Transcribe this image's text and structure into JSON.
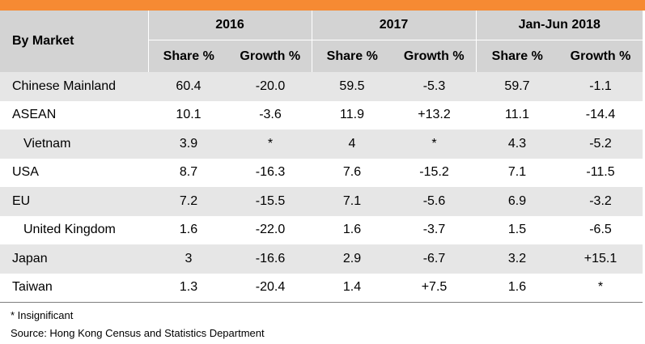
{
  "header": {
    "market_label": "By Market",
    "periods": [
      "2016",
      "2017",
      "Jan-Jun 2018"
    ],
    "share_label": "Share %",
    "growth_label": "Growth %"
  },
  "rows": [
    {
      "market": "Chinese Mainland",
      "sub": false,
      "values": [
        "60.4",
        "-20.0",
        "59.5",
        "-5.3",
        "59.7",
        "-1.1"
      ]
    },
    {
      "market": "ASEAN",
      "sub": false,
      "values": [
        "10.1",
        "-3.6",
        "11.9",
        "+13.2",
        "11.1",
        "-14.4"
      ]
    },
    {
      "market": "Vietnam",
      "sub": true,
      "values": [
        "3.9",
        "*",
        "4",
        "*",
        "4.3",
        "-5.2"
      ]
    },
    {
      "market": "USA",
      "sub": false,
      "values": [
        "8.7",
        "-16.3",
        "7.6",
        "-15.2",
        "7.1",
        "-11.5"
      ]
    },
    {
      "market": "EU",
      "sub": false,
      "values": [
        "7.2",
        "-15.5",
        "7.1",
        "-5.6",
        "6.9",
        "-3.2"
      ]
    },
    {
      "market": "United Kingdom",
      "sub": true,
      "values": [
        "1.6",
        "-22.0",
        "1.6",
        "-3.7",
        "1.5",
        "-6.5"
      ]
    },
    {
      "market": "Japan",
      "sub": false,
      "values": [
        "3",
        "-16.6",
        "2.9",
        "-6.7",
        "3.2",
        "+15.1"
      ]
    },
    {
      "market": "Taiwan",
      "sub": false,
      "values": [
        "1.3",
        "-20.4",
        "1.4",
        "+7.5",
        "1.6",
        "*"
      ]
    }
  ],
  "notes": {
    "footnote": "* Insignificant",
    "source": "Source: Hong Kong Census and Statistics Department"
  },
  "colors": {
    "accent_bar": "#f68a33",
    "header_bg": "#d3d3d3",
    "stripe_bg": "#e6e6e6"
  }
}
